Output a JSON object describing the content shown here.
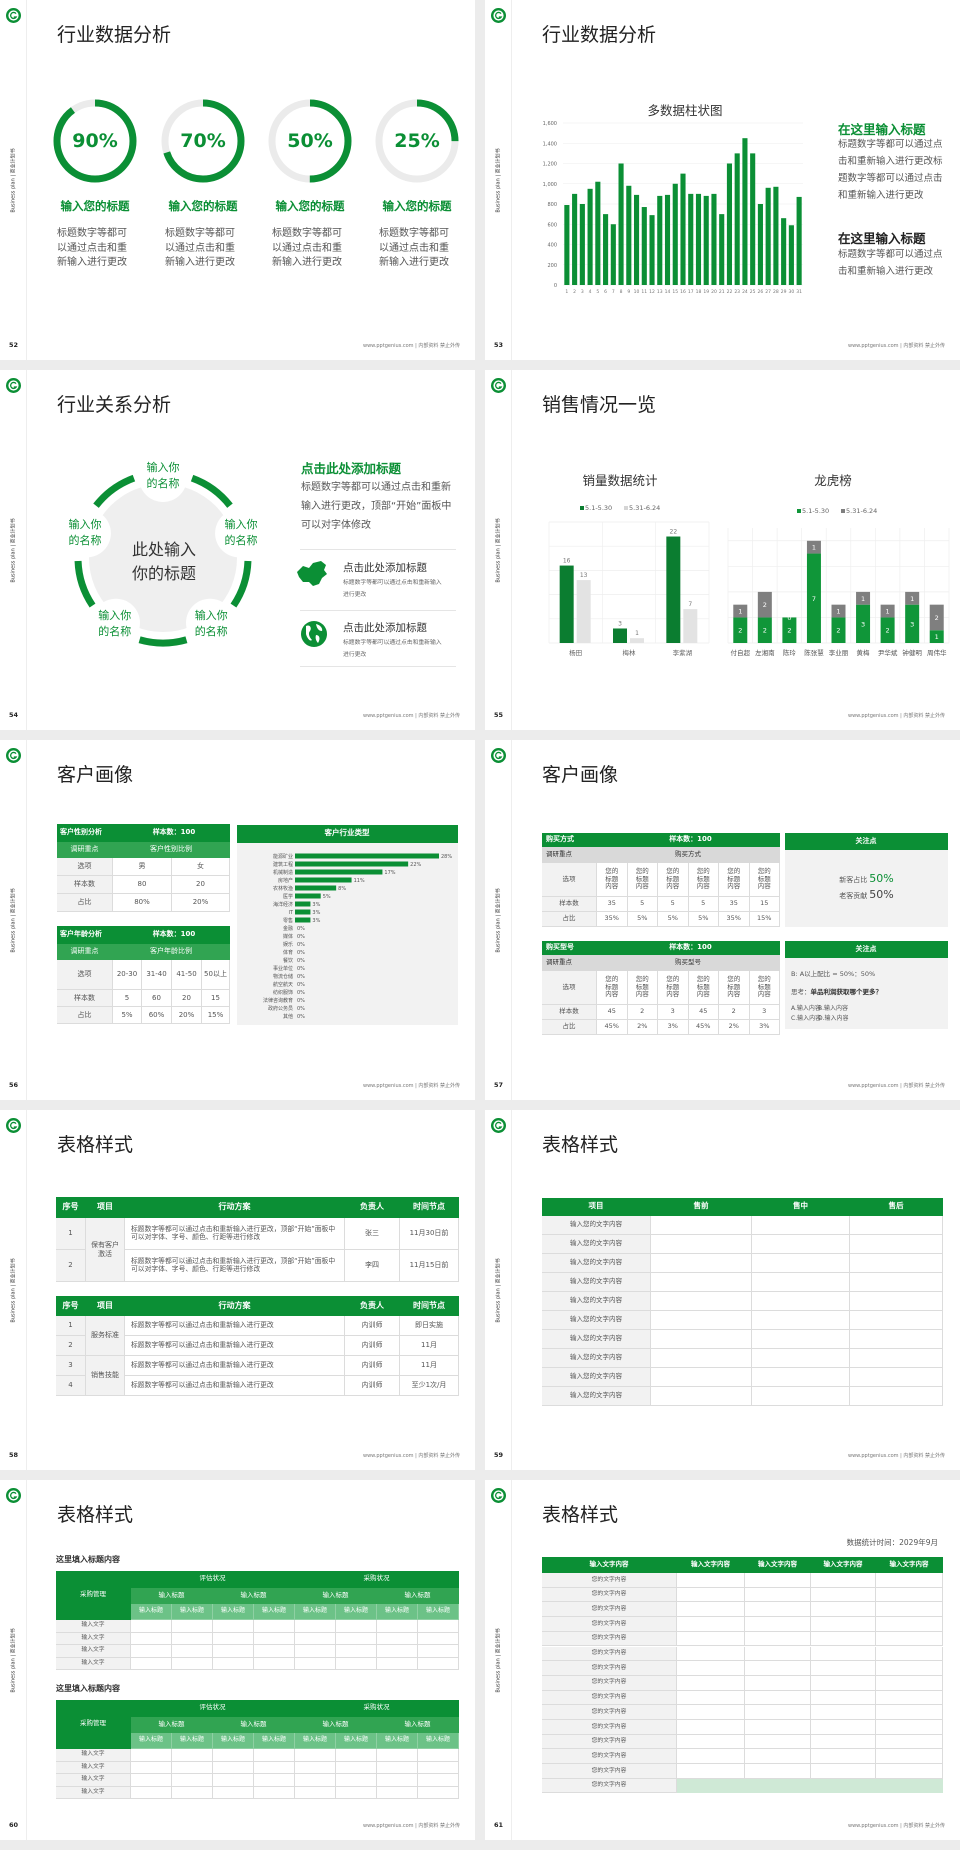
{
  "common": {
    "sidebar_text": "Business plan | 商业计划书",
    "footer": "www.pptgenius.com | 内部资料 禁止外传",
    "logo_icon": "g-logo-icon",
    "colors": {
      "green": "#0b8f35",
      "dark_green": "#0b7d30",
      "mid_green": "#31a452",
      "light_gray": "#f2f2f2",
      "ring_gray": "#ebebeb",
      "bar_gray": "#7f7f7f",
      "pale_bar": "#e3e3e3",
      "light_green": "#cfe9d6"
    }
  },
  "slides": [
    {
      "page": "52",
      "title": "行业数据分析",
      "rings": [
        {
          "value": 90,
          "label": "90%",
          "heading": "输入您的标题",
          "text": "标题数字等都可以通过点击和重新输入进行更改"
        },
        {
          "value": 70,
          "label": "70%",
          "heading": "输入您的标题",
          "text": "标题数字等都可以通过点击和重新输入进行更改"
        },
        {
          "value": 50,
          "label": "50%",
          "heading": "输入您的标题",
          "text": "标题数字等都可以通过点击和重新输入进行更改"
        },
        {
          "value": 25,
          "label": "25%",
          "heading": "输入您的标题",
          "text": "标题数字等都可以通过点击和重新输入进行更改"
        }
      ]
    },
    {
      "page": "53",
      "title": "行业数据分析",
      "blocks": [
        {
          "heading": "在这里输入标题",
          "heading_color": "green",
          "text": "标题数字等都可以通过点击和重新输入进行更改标题数字等都可以通过点击和重新输入进行更改"
        },
        {
          "heading": "在这里输入标题",
          "heading_color": "black",
          "text": "标题数字等都可以通过点击和重新输入进行更改"
        }
      ]
    },
    {
      "page": "54",
      "title": "行业关系分析",
      "center_text": "此处输入你的标题",
      "nodes": [
        "输入你的名称",
        "输入你的名称",
        "输入你的名称",
        "输入你的名称",
        "输入你的名称"
      ],
      "main_heading": "点击此处添加标题",
      "main_text": "标题数字等都可以通过点击和重新输入进行更改，顶部“开始”面板中可以对字体修改",
      "items": [
        {
          "icon": "china-map-icon",
          "heading": "点击此处添加标题",
          "text": "标题数字等都可以通过点击和重新输入进行更改"
        },
        {
          "icon": "globe-icon",
          "heading": "点击此处添加标题",
          "text": "标题数字等都可以通过点击和重新输入进行更改"
        }
      ]
    },
    {
      "page": "55",
      "title": "销售情况一览"
    },
    {
      "page": "56",
      "title": "客户画像",
      "gender_table": {
        "title": "客户性别分析",
        "sample": "样本数：100",
        "focus_label": "调研重点",
        "focus": "客户性别比例",
        "rows": [
          [
            "选项",
            "男",
            "女"
          ],
          [
            "样本数",
            "80",
            "20"
          ],
          [
            "占比",
            "80%",
            "20%"
          ]
        ]
      },
      "age_table": {
        "title": "客户年龄分析",
        "sample": "样本数：100",
        "focus_label": "调研重点",
        "focus": "客户年龄比例",
        "rows": [
          [
            "选项",
            "20-30",
            "31-40",
            "41-50",
            "50以上"
          ],
          [
            "样本数",
            "5",
            "60",
            "20",
            "15"
          ],
          [
            "占比",
            "5%",
            "60%",
            "20%",
            "15%"
          ]
        ]
      }
    },
    {
      "page": "57",
      "title": "客户画像",
      "tables": [
        {
          "title": "购买方式",
          "sample": "样本数：100",
          "focus_label": "调研重点",
          "focus": "购买方式",
          "rows": [
            [
              "选项",
              "您的标题内容",
              "您的标题内容",
              "您的标题内容",
              "您的标题内容",
              "您的标题内容",
              "您的标题内容"
            ],
            [
              "样本数",
              "35",
              "5",
              "5",
              "5",
              "35",
              "15"
            ],
            [
              "占比",
              "35%",
              "5%",
              "5%",
              "5%",
              "35%",
              "15%"
            ]
          ]
        },
        {
          "title": "购买型号",
          "sample": "样本数：100",
          "focus_label": "调研重点",
          "focus": "购买型号",
          "rows": [
            [
              "选项",
              "您的标题内容",
              "您的标题内容",
              "您的标题内容",
              "您的标题内容",
              "您的标题内容",
              "您的标题内容"
            ],
            [
              "样本数",
              "45",
              "2",
              "3",
              "45",
              "2",
              "3"
            ],
            [
              "占比",
              "45%",
              "2%",
              "3%",
              "45%",
              "2%",
              "3%"
            ]
          ]
        }
      ],
      "panel1": {
        "title": "关注点",
        "lines": [
          {
            "label": "新客占比",
            "value": "50%"
          },
          {
            "label": "老客贡献",
            "value": "50%"
          }
        ]
      },
      "panel2": {
        "title": "关注点",
        "ratio": "B: A以上配比 = 50%：50%",
        "question_label": "思考：",
        "question": "单品利润获取哪个更多？",
        "options": [
          "A.输入内容",
          "B.输入内容",
          "C.输入内容",
          "D.输入内容"
        ]
      }
    },
    {
      "page": "58",
      "title": "表格样式",
      "headers": [
        "序号",
        "项目",
        "行动方案",
        "负责人",
        "时间节点"
      ],
      "table1": {
        "groups": [
          {
            "name": "保有客户激活",
            "span": 2
          }
        ],
        "rows": [
          {
            "no": "1",
            "plan": "标题数字等都可以通过点击和重新输入进行更改，顶部“开始”面板中可以对字体、字号、颜色、行距等进行修改",
            "owner": "张三",
            "time": "11月30日前"
          },
          {
            "no": "2",
            "plan": "标题数字等都可以通过点击和重新输入进行更改，顶部“开始”面板中可以对字体、字号、颜色、行距等进行修改",
            "owner": "李四",
            "time": "11月15日前"
          }
        ]
      },
      "table2": {
        "groups": [
          {
            "name": "服务标准",
            "span": 2
          },
          {
            "name": "销售技能",
            "span": 2
          }
        ],
        "rows": [
          {
            "no": "1",
            "plan": "标题数字等都可以通过点击和重新输入进行更改",
            "owner": "内训师",
            "time": "即日实施"
          },
          {
            "no": "2",
            "plan": "标题数字等都可以通过点击和重新输入进行更改",
            "owner": "内训师",
            "time": "11月"
          },
          {
            "no": "3",
            "plan": "标题数字等都可以通过点击和重新输入进行更改",
            "owner": "内训师",
            "time": "11月"
          },
          {
            "no": "4",
            "plan": "标题数字等都可以通过点击和重新输入进行更改",
            "owner": "内训师",
            "time": "至少1次/月"
          }
        ]
      }
    },
    {
      "page": "59",
      "title": "表格样式",
      "headers": [
        "项目",
        "售前",
        "售中",
        "售后"
      ],
      "rows": [
        "输入您的文字内容",
        "输入您的文字内容",
        "输入您的文字内容",
        "输入您的文字内容",
        "输入您的文字内容",
        "输入您的文字内容",
        "输入您的文字内容",
        "输入您的文字内容",
        "输入您的文字内容",
        "输入您的文字内容"
      ]
    },
    {
      "page": "60",
      "title": "表格样式",
      "tables": [
        {
          "title": "这里填入标题内容",
          "corner": "采购管理",
          "groups": [
            "评估状况",
            "采购状况"
          ],
          "subgroups": [
            "输入标题",
            "输入标题",
            "输入标题",
            "输入标题"
          ],
          "columns": [
            "输入标题",
            "输入标题",
            "输入标题",
            "输入标题",
            "输入标题",
            "输入标题",
            "输入标题",
            "输入标题"
          ],
          "rows": [
            "输入文字",
            "输入文字",
            "输入文字",
            "输入文字"
          ]
        },
        {
          "title": "这里填入标题内容",
          "corner": "采购管理",
          "groups": [
            "评估状况",
            "采购状况"
          ],
          "subgroups": [
            "输入标题",
            "输入标题",
            "输入标题",
            "输入标题"
          ],
          "columns": [
            "输入标题",
            "输入标题",
            "输入标题",
            "输入标题",
            "输入标题",
            "输入标题",
            "输入标题",
            "输入标题"
          ],
          "rows": [
            "输入文字",
            "输入文字",
            "输入文字",
            "输入文字"
          ]
        }
      ]
    },
    {
      "page": "61",
      "title": "表格样式",
      "date_note": "数据统计时间：2029年9月",
      "headers": [
        "输入文字内容",
        "输入文字内容",
        "输入文字内容",
        "输入文字内容",
        "输入文字内容"
      ],
      "rows": [
        "您的文字内容",
        "您的文字内容",
        "您的文字内容",
        "您的文字内容",
        "您的文字内容",
        "您的文字内容",
        "您的文字内容",
        "您的文字内容",
        "您的文字内容",
        "您的文字内容",
        "您的文字内容",
        "您的文字内容",
        "您的文字内容",
        "您的文字内容",
        "您的文字内容"
      ],
      "highlight_last_row": true
    }
  ],
  "chart_data": [
    {
      "id": "daily-bars",
      "type": "bar",
      "title": "多数据柱状图",
      "categories": [
        "1",
        "2",
        "3",
        "4",
        "5",
        "6",
        "7",
        "8",
        "9",
        "10",
        "11",
        "12",
        "13",
        "14",
        "15",
        "16",
        "17",
        "18",
        "19",
        "20",
        "21",
        "22",
        "23",
        "24",
        "25",
        "26",
        "27",
        "28",
        "29",
        "30",
        "31"
      ],
      "values": [
        790,
        900,
        800,
        950,
        1020,
        700,
        600,
        1200,
        980,
        890,
        770,
        690,
        880,
        890,
        1000,
        1100,
        900,
        900,
        880,
        900,
        700,
        1200,
        1300,
        1450,
        1300,
        800,
        960,
        970,
        660,
        590,
        870
      ],
      "yticks": [
        0,
        200,
        400,
        600,
        800,
        1000,
        1200,
        1400,
        1600
      ],
      "ylim": [
        0,
        1600
      ],
      "grid": true,
      "color": "#0b8f35"
    },
    {
      "id": "sales-stats",
      "type": "bar",
      "title": "销量数据统计",
      "categories": [
        "杨田",
        "梅林",
        "李紫湖"
      ],
      "series": [
        {
          "name": "5.1-5.30",
          "values": [
            16,
            3,
            22
          ],
          "color": "#0b7d30"
        },
        {
          "name": "5.31-6.24",
          "values": [
            13,
            1,
            7
          ],
          "color": "#e3e3e3"
        }
      ],
      "ylim": [
        0,
        25
      ],
      "grid": true,
      "legend": "top"
    },
    {
      "id": "leaderboard",
      "type": "bar",
      "stacked": true,
      "title": "龙虎榜",
      "categories": [
        "付自超",
        "左湘南",
        "陈玲",
        "陈张慧",
        "李业丽",
        "黄梅",
        "尹华斌",
        "钟健明",
        "周伟华"
      ],
      "series": [
        {
          "name": "5.1-5.30",
          "values": [
            2,
            2,
            2,
            7,
            2,
            3,
            2,
            3,
            1
          ],
          "color": "#109639"
        },
        {
          "name": "5.31-6.24",
          "values": [
            1,
            2,
            0,
            1,
            1,
            1,
            1,
            1,
            2
          ],
          "color": "#7f7f7f"
        }
      ],
      "ylim": [
        0,
        9
      ],
      "grid": true,
      "legend": "top"
    },
    {
      "id": "industry",
      "type": "bar",
      "orientation": "horizontal",
      "title": "客户行业类型",
      "categories": [
        "能源矿业",
        "建筑工程",
        "机械制造",
        "房地产",
        "农林牧渔",
        "医学",
        "海洋经济",
        "IT",
        "零售",
        "金融",
        "媒体",
        "娱乐",
        "体育",
        "餐饮",
        "事业单位",
        "物流仓储",
        "航空航天",
        "纺织服饰",
        "法律咨询教育",
        "政府公务员",
        "其他"
      ],
      "values": [
        28,
        22,
        17,
        11,
        8,
        5,
        3,
        3,
        3,
        0,
        0,
        0,
        0,
        0,
        0,
        0,
        0,
        0,
        0,
        0,
        0
      ],
      "labels": [
        "28%",
        "22%",
        "17%",
        "11%",
        "8%",
        "5%",
        "3%",
        "3%",
        "3%",
        "0%",
        "0%",
        "0%",
        "0%",
        "0%",
        "0%",
        "0%",
        "0%",
        "0%",
        "0%",
        "0%",
        "0%"
      ],
      "xlim": [
        0,
        28
      ],
      "color": "#0b8f35"
    }
  ]
}
